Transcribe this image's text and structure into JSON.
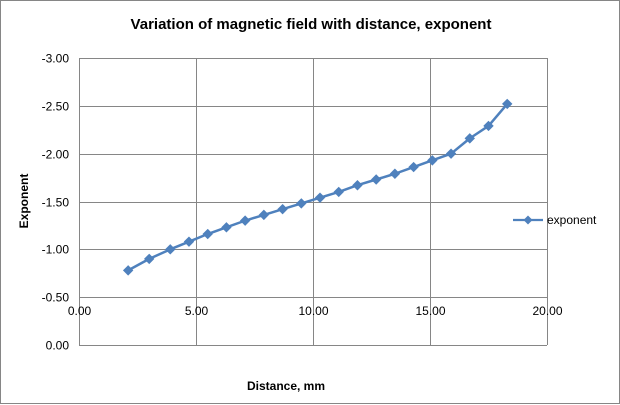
{
  "chart_data": {
    "type": "scatter",
    "title": "Variation of magnetic field with distance, exponent",
    "xlabel": "Distance, mm",
    "ylabel": "Exponent",
    "xlim": [
      0,
      20
    ],
    "ylim": [
      0,
      -3
    ],
    "y_reversed": true,
    "x_ticks": [
      "0.00",
      "5.00",
      "10.00",
      "15.00",
      "20.00"
    ],
    "x_tick_values": [
      0,
      5,
      10,
      15,
      20
    ],
    "y_ticks": [
      "0.00",
      "-0.50",
      "-1.00",
      "-1.50",
      "-2.00",
      "-2.50",
      "-3.00"
    ],
    "y_tick_values": [
      0,
      -0.5,
      -1.0,
      -1.5,
      -2.0,
      -2.5,
      -3.0
    ],
    "grid": true,
    "legend_position": "right",
    "series": [
      {
        "name": "exponent",
        "color": "#4f81bd",
        "marker": "diamond",
        "line": true,
        "x": [
          2.1,
          3.0,
          3.9,
          4.7,
          5.5,
          6.3,
          7.1,
          7.9,
          8.7,
          9.5,
          10.3,
          11.1,
          11.9,
          12.7,
          13.5,
          14.3,
          15.1,
          15.9,
          16.7,
          17.5,
          18.3
        ],
        "y": [
          -0.78,
          -0.9,
          -1.0,
          -1.08,
          -1.16,
          -1.23,
          -1.3,
          -1.36,
          -1.42,
          -1.48,
          -1.54,
          -1.6,
          -1.67,
          -1.73,
          -1.79,
          -1.86,
          -1.93,
          -2.0,
          -2.16,
          -2.29,
          -2.52
        ]
      }
    ]
  }
}
